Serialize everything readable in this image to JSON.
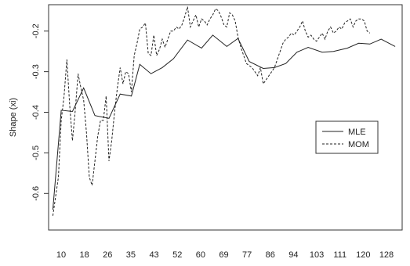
{
  "chart_data": {
    "type": "line",
    "title": "",
    "xlabel": "",
    "ylabel": "Shape (xi)",
    "x_tick_labels": [
      "10",
      "18",
      "26",
      "35",
      "43",
      "52",
      "60",
      "69",
      "77",
      "86",
      "94",
      "103",
      "111",
      "120",
      "128"
    ],
    "y_ticks": [
      -0.6,
      -0.5,
      -0.4,
      -0.3,
      -0.2
    ],
    "y_tick_labels": [
      "-0.6",
      "-0.5",
      "-0.4",
      "-0.3",
      "-0.2"
    ],
    "xlim": [
      8.5,
      134.5
    ],
    "ylim": [
      -0.69,
      -0.135
    ],
    "grid": false,
    "legend_position": "right",
    "series": [
      {
        "name": "MLE",
        "style": "solid",
        "color": "#222222",
        "points": [
          [
            10,
            -0.64
          ],
          [
            13,
            -0.395
          ],
          [
            17,
            -0.398
          ],
          [
            21,
            -0.34
          ],
          [
            25,
            -0.408
          ],
          [
            30,
            -0.415
          ],
          [
            34,
            -0.355
          ],
          [
            38,
            -0.36
          ],
          [
            41,
            -0.282
          ],
          [
            45,
            -0.305
          ],
          [
            49,
            -0.29
          ],
          [
            53,
            -0.268
          ],
          [
            58,
            -0.222
          ],
          [
            63,
            -0.242
          ],
          [
            67,
            -0.21
          ],
          [
            72,
            -0.238
          ],
          [
            76,
            -0.218
          ],
          [
            80,
            -0.275
          ],
          [
            85,
            -0.292
          ],
          [
            89,
            -0.29
          ],
          [
            93,
            -0.28
          ],
          [
            97,
            -0.252
          ],
          [
            101,
            -0.24
          ],
          [
            106,
            -0.252
          ],
          [
            110,
            -0.25
          ],
          [
            115,
            -0.242
          ],
          [
            119,
            -0.23
          ],
          [
            123,
            -0.232
          ],
          [
            127,
            -0.22
          ],
          [
            132,
            -0.238
          ]
        ]
      },
      {
        "name": "MOM",
        "style": "dashed",
        "color": "#222222",
        "points": [
          [
            10,
            -0.655
          ],
          [
            12,
            -0.56
          ],
          [
            13,
            -0.42
          ],
          [
            14,
            -0.36
          ],
          [
            15,
            -0.27
          ],
          [
            16,
            -0.38
          ],
          [
            17,
            -0.47
          ],
          [
            18,
            -0.395
          ],
          [
            19,
            -0.305
          ],
          [
            20,
            -0.34
          ],
          [
            21,
            -0.37
          ],
          [
            22,
            -0.45
          ],
          [
            23,
            -0.56
          ],
          [
            24,
            -0.58
          ],
          [
            25,
            -0.52
          ],
          [
            26,
            -0.46
          ],
          [
            27,
            -0.42
          ],
          [
            28,
            -0.42
          ],
          [
            29,
            -0.36
          ],
          [
            30,
            -0.52
          ],
          [
            31,
            -0.47
          ],
          [
            32,
            -0.4
          ],
          [
            33,
            -0.34
          ],
          [
            34,
            -0.29
          ],
          [
            35,
            -0.33
          ],
          [
            36,
            -0.3
          ],
          [
            37,
            -0.305
          ],
          [
            38,
            -0.35
          ],
          [
            39,
            -0.26
          ],
          [
            40,
            -0.23
          ],
          [
            41,
            -0.195
          ],
          [
            42,
            -0.19
          ],
          [
            43,
            -0.18
          ],
          [
            44,
            -0.255
          ],
          [
            45,
            -0.26
          ],
          [
            46,
            -0.21
          ],
          [
            47,
            -0.26
          ],
          [
            48,
            -0.245
          ],
          [
            49,
            -0.22
          ],
          [
            50,
            -0.24
          ],
          [
            51,
            -0.22
          ],
          [
            52,
            -0.2
          ],
          [
            53,
            -0.2
          ],
          [
            54,
            -0.19
          ],
          [
            55,
            -0.195
          ],
          [
            56,
            -0.185
          ],
          [
            57,
            -0.165
          ],
          [
            58,
            -0.14
          ],
          [
            59,
            -0.19
          ],
          [
            60,
            -0.175
          ],
          [
            61,
            -0.16
          ],
          [
            62,
            -0.19
          ],
          [
            63,
            -0.17
          ],
          [
            64,
            -0.175
          ],
          [
            65,
            -0.185
          ],
          [
            66,
            -0.17
          ],
          [
            67,
            -0.16
          ],
          [
            68,
            -0.145
          ],
          [
            69,
            -0.15
          ],
          [
            70,
            -0.165
          ],
          [
            71,
            -0.185
          ],
          [
            72,
            -0.19
          ],
          [
            73,
            -0.155
          ],
          [
            74,
            -0.16
          ],
          [
            75,
            -0.175
          ],
          [
            76,
            -0.215
          ],
          [
            77,
            -0.24
          ],
          [
            78,
            -0.26
          ],
          [
            79,
            -0.28
          ],
          [
            80,
            -0.285
          ],
          [
            81,
            -0.29
          ],
          [
            82,
            -0.3
          ],
          [
            83,
            -0.31
          ],
          [
            84,
            -0.29
          ],
          [
            85,
            -0.33
          ],
          [
            86,
            -0.32
          ],
          [
            87,
            -0.31
          ],
          [
            88,
            -0.3
          ],
          [
            89,
            -0.29
          ],
          [
            90,
            -0.27
          ],
          [
            91,
            -0.25
          ],
          [
            92,
            -0.23
          ],
          [
            93,
            -0.22
          ],
          [
            94,
            -0.215
          ],
          [
            95,
            -0.205
          ],
          [
            96,
            -0.21
          ],
          [
            97,
            -0.2
          ],
          [
            98,
            -0.19
          ],
          [
            99,
            -0.175
          ],
          [
            100,
            -0.2
          ],
          [
            101,
            -0.215
          ],
          [
            102,
            -0.21
          ],
          [
            103,
            -0.22
          ],
          [
            104,
            -0.225
          ],
          [
            105,
            -0.215
          ],
          [
            106,
            -0.205
          ],
          [
            107,
            -0.22
          ],
          [
            108,
            -0.2
          ],
          [
            109,
            -0.19
          ],
          [
            110,
            -0.205
          ],
          [
            111,
            -0.2
          ],
          [
            112,
            -0.19
          ],
          [
            113,
            -0.195
          ],
          [
            114,
            -0.18
          ],
          [
            115,
            -0.175
          ],
          [
            116,
            -0.17
          ],
          [
            117,
            -0.19
          ],
          [
            118,
            -0.175
          ],
          [
            119,
            -0.17
          ],
          [
            120,
            -0.17
          ],
          [
            121,
            -0.175
          ],
          [
            122,
            -0.2
          ],
          [
            123,
            -0.205
          ]
        ]
      }
    ]
  }
}
